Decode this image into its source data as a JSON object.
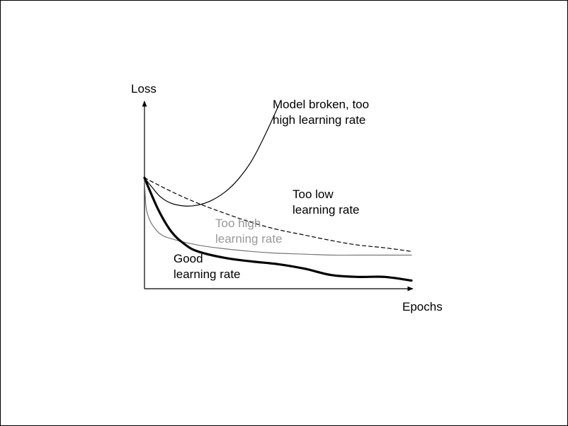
{
  "chart_data": {
    "type": "line",
    "title": "",
    "xlabel": "Epochs",
    "ylabel": "Loss",
    "xlim": [
      0,
      10
    ],
    "ylim": [
      0,
      10
    ],
    "grid": false,
    "legend": "none",
    "series": [
      {
        "name": "Model broken, too high learning rate",
        "label_lines": [
          "Model broken, too",
          "high learning rate"
        ],
        "style": "solid",
        "color": "#000000",
        "x": [
          0,
          0.3,
          0.6,
          1.0,
          1.5,
          2.0,
          2.5,
          3.0,
          3.5,
          4.0,
          4.5,
          5.0
        ],
        "y": [
          6.1,
          5.55,
          5.05,
          4.7,
          4.55,
          4.6,
          4.85,
          5.3,
          6.0,
          7.0,
          8.4,
          10.0
        ]
      },
      {
        "name": "Too low learning rate",
        "label_lines": [
          "Too low",
          "learning rate"
        ],
        "style": "dashed",
        "color": "#000000",
        "x": [
          0,
          1,
          2,
          3,
          4,
          5,
          6,
          7,
          8,
          9,
          10
        ],
        "y": [
          6.1,
          5.35,
          4.7,
          4.15,
          3.65,
          3.25,
          2.95,
          2.65,
          2.4,
          2.25,
          2.05
        ]
      },
      {
        "name": "Too high learning rate",
        "label_lines": [
          "Too high",
          "learning rate"
        ],
        "style": "solid",
        "color": "#777777",
        "x": [
          0,
          0.05,
          0.15,
          0.3,
          0.6,
          1,
          2,
          3,
          4,
          5,
          6,
          7,
          8,
          10
        ],
        "y": [
          6.1,
          4.6,
          3.95,
          3.5,
          3.0,
          2.75,
          2.4,
          2.2,
          2.05,
          1.95,
          1.9,
          1.85,
          1.85,
          1.85
        ]
      },
      {
        "name": "Good learning rate",
        "label_lines": [
          "Good",
          "learning rate"
        ],
        "style": "bold",
        "color": "#000000",
        "x": [
          0,
          0.5,
          1,
          1.5,
          2,
          3,
          4,
          5,
          6,
          7,
          8,
          9,
          10
        ],
        "y": [
          6.1,
          4.4,
          3.15,
          2.45,
          2.05,
          1.7,
          1.5,
          1.35,
          1.1,
          0.75,
          0.65,
          0.65,
          0.45
        ]
      }
    ]
  }
}
